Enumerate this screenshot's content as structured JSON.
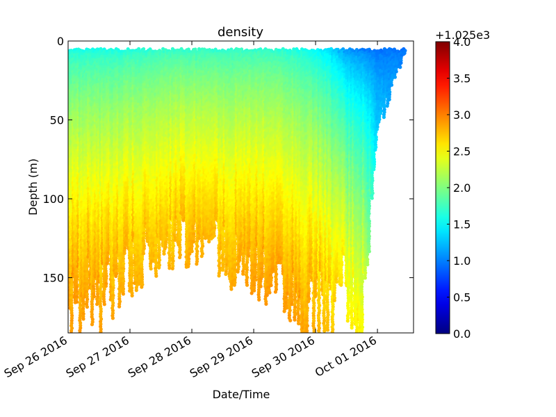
{
  "chart_data": {
    "type": "scatter",
    "title": "density",
    "xlabel": "Date/Time",
    "ylabel": "Depth (m)",
    "x_ticks": [
      "Sep 26 2016",
      "Sep 27 2016",
      "Sep 28 2016",
      "Sep 29 2016",
      "Sep 30 2016",
      "Oct 01 2016"
    ],
    "xlim": [
      "2016-09-26T00:00",
      "2016-10-01T14:00"
    ],
    "ylim": [
      185,
      0
    ],
    "y_ticks": [
      0,
      50,
      100,
      150
    ],
    "y_inverted": true,
    "grid": false,
    "colorbar": {
      "offset_label": "+1.025e3",
      "range": [
        0.0,
        4.0
      ],
      "ticks": [
        "0.0",
        "0.5",
        "1.0",
        "1.5",
        "2.0",
        "2.5",
        "3.0",
        "3.5",
        "4.0"
      ],
      "colormap": "jet"
    },
    "series": [
      {
        "name": "",
        "columns": [
          {
            "time": "2016-09-26T00:00",
            "max_depth": 184,
            "surface_value": 1.6,
            "bottom_value": 2.95
          },
          {
            "time": "2016-09-26T06:00",
            "max_depth": 160,
            "surface_value": 1.6,
            "bottom_value": 2.9
          },
          {
            "time": "2016-09-26T12:00",
            "max_depth": 167,
            "surface_value": 1.6,
            "bottom_value": 2.9
          },
          {
            "time": "2016-09-26T18:00",
            "max_depth": 155,
            "surface_value": 1.6,
            "bottom_value": 2.85
          },
          {
            "time": "2016-09-27T00:00",
            "max_depth": 143,
            "surface_value": 1.65,
            "bottom_value": 2.85
          },
          {
            "time": "2016-09-27T06:00",
            "max_depth": 135,
            "surface_value": 1.65,
            "bottom_value": 2.8
          },
          {
            "time": "2016-09-27T12:00",
            "max_depth": 130,
            "surface_value": 1.7,
            "bottom_value": 2.8
          },
          {
            "time": "2016-09-27T18:00",
            "max_depth": 127,
            "surface_value": 1.7,
            "bottom_value": 2.8
          },
          {
            "time": "2016-09-28T00:00",
            "max_depth": 133,
            "surface_value": 1.7,
            "bottom_value": 2.85
          },
          {
            "time": "2016-09-28T06:00",
            "max_depth": 126,
            "surface_value": 1.7,
            "bottom_value": 2.8
          },
          {
            "time": "2016-09-28T12:00",
            "max_depth": 132,
            "surface_value": 1.7,
            "bottom_value": 2.8
          },
          {
            "time": "2016-09-28T18:00",
            "max_depth": 145,
            "surface_value": 1.7,
            "bottom_value": 2.85
          },
          {
            "time": "2016-09-29T00:00",
            "max_depth": 150,
            "surface_value": 1.7,
            "bottom_value": 2.9
          },
          {
            "time": "2016-09-29T06:00",
            "max_depth": 158,
            "surface_value": 1.7,
            "bottom_value": 2.9
          },
          {
            "time": "2016-09-29T12:00",
            "max_depth": 158,
            "surface_value": 1.65,
            "bottom_value": 2.9
          },
          {
            "time": "2016-09-29T18:00",
            "max_depth": 172,
            "surface_value": 1.6,
            "bottom_value": 2.9
          },
          {
            "time": "2016-09-30T00:00",
            "max_depth": 172,
            "surface_value": 1.5,
            "bottom_value": 2.85
          },
          {
            "time": "2016-09-30T06:00",
            "max_depth": 165,
            "surface_value": 1.35,
            "bottom_value": 2.75
          },
          {
            "time": "2016-09-30T12:00",
            "max_depth": 155,
            "surface_value": 1.1,
            "bottom_value": 2.55
          },
          {
            "time": "2016-09-30T18:00",
            "max_depth": 178,
            "surface_value": 1.0,
            "bottom_value": 2.6
          },
          {
            "time": "2016-10-01T00:00",
            "max_depth": 55,
            "surface_value": 0.95,
            "bottom_value": 1.3
          },
          {
            "time": "2016-10-01T12:00",
            "max_depth": 2,
            "surface_value": 0.95,
            "bottom_value": 0.95
          }
        ]
      }
    ]
  }
}
